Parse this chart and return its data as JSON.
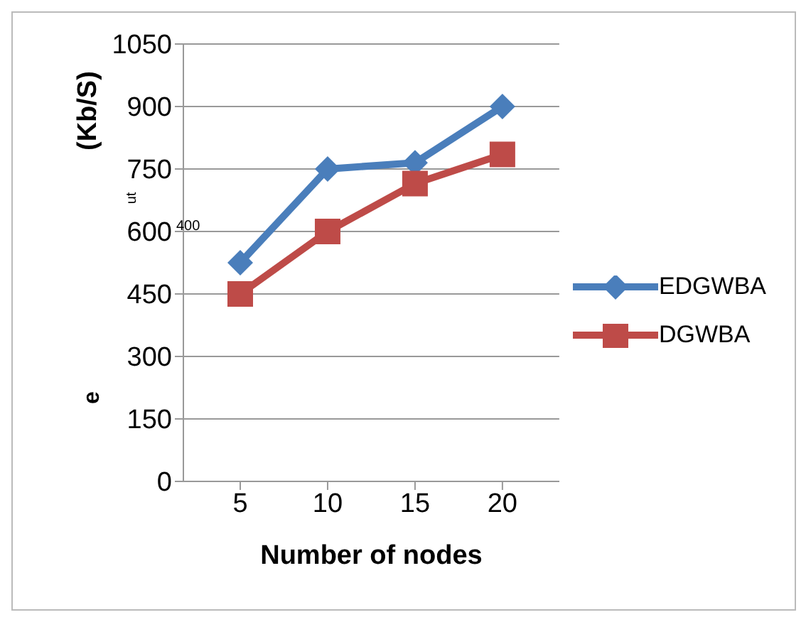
{
  "chart_data": {
    "type": "line",
    "xlabel": "Number of nodes",
    "ylabel": "(Kb/S)",
    "annotations": [
      "ut",
      "400",
      "e"
    ],
    "categories": [
      "5",
      "10",
      "15",
      "20"
    ],
    "series": [
      {
        "name": "EDGWBA",
        "color": "#4a7ebb",
        "marker": "diamond",
        "values": [
          525,
          750,
          765,
          900
        ]
      },
      {
        "name": "DGWBA",
        "color": "#be4b48",
        "marker": "square",
        "values": [
          450,
          600,
          715,
          785
        ]
      }
    ],
    "ylim": [
      0,
      1050
    ],
    "yticks": [
      0,
      150,
      300,
      450,
      600,
      750,
      900,
      1050
    ],
    "grid": "y",
    "legend": "right"
  }
}
